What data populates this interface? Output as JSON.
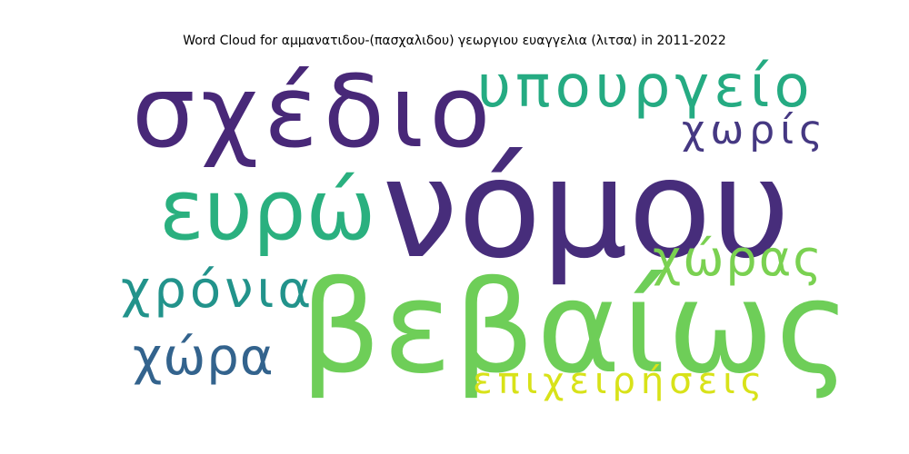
{
  "title": "Word Cloud for αμμανατιδου-(πασχαλιδου) γεωργιου ευαγγελια (λιτσα) in 2011-2022",
  "chart_data": {
    "type": "wordcloud",
    "title": "Word Cloud for αμμανατιδου-(πασχαλιδου) γεωργιου ευαγγελια (λιτσα) in 2011-2022",
    "words": [
      {
        "text": "νόμου",
        "weight": 1.0,
        "color": "#472d7b"
      },
      {
        "text": "βεβαίως",
        "weight": 0.95,
        "color": "#6ece58"
      },
      {
        "text": "σχέδιο",
        "weight": 0.8,
        "color": "#482878"
      },
      {
        "text": "ευρώ",
        "weight": 0.7,
        "color": "#2ab07f"
      },
      {
        "text": "υπουργείο",
        "weight": 0.55,
        "color": "#25ab82"
      },
      {
        "text": "χρόνια",
        "weight": 0.45,
        "color": "#22938b"
      },
      {
        "text": "χώρας",
        "weight": 0.42,
        "color": "#7ad151"
      },
      {
        "text": "χώρα",
        "weight": 0.42,
        "color": "#33638d"
      },
      {
        "text": "χωρίς",
        "weight": 0.35,
        "color": "#453882"
      },
      {
        "text": "επιχειρήσεις",
        "weight": 0.32,
        "color": "#d8e219"
      }
    ]
  }
}
